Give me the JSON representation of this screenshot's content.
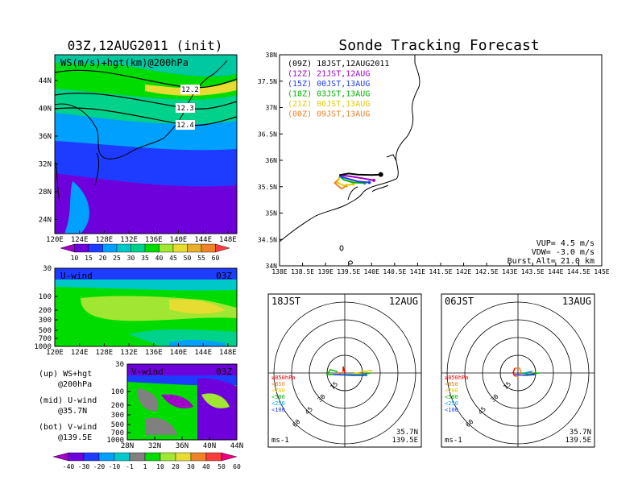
{
  "left_title": "03Z,12AUG2011 (init)",
  "right_title": "Sonde Tracking Forecast",
  "map_panel": {
    "label": "WS(m/s)+hgt(km)@200hPa",
    "lat_ticks": [
      "44N",
      "40N",
      "36N",
      "32N",
      "28N",
      "24N"
    ],
    "lon_ticks": [
      "120E",
      "124E",
      "128E",
      "132E",
      "136E",
      "140E",
      "144E",
      "148E"
    ],
    "contour_labels": [
      "12.2",
      "12.3",
      "12.4"
    ],
    "colorbar_labels": [
      "10",
      "15",
      "20",
      "25",
      "30",
      "35",
      "40",
      "45",
      "50",
      "55",
      "60"
    ],
    "colorbar_colors": [
      "#a000c8",
      "#6e00dc",
      "#1e3cff",
      "#00a0ff",
      "#00c8c8",
      "#00d28c",
      "#00dc00",
      "#a0e632",
      "#e6dc32",
      "#e6af2d",
      "#f08228",
      "#fa3c3c"
    ]
  },
  "u_panel": {
    "label": "U-wind",
    "time": "03Z",
    "y_ticks": [
      "30",
      "100",
      "200",
      "300",
      "500",
      "700",
      "1000"
    ],
    "x_ticks": [
      "120E",
      "124E",
      "128E",
      "132E",
      "136E",
      "140E",
      "144E",
      "148E"
    ]
  },
  "v_panel": {
    "label": "V-wind",
    "time": "03Z",
    "y_ticks": [
      "30",
      "100",
      "200",
      "300",
      "500",
      "700",
      "1000"
    ],
    "x_ticks": [
      "28N",
      "32N",
      "36N",
      "40N",
      "44N"
    ]
  },
  "legend_notes": {
    "up": "(up) WS+hgt",
    "up2": "@200hPa",
    "mid": "(mid) U-wind",
    "mid2": "@35.7N",
    "bot": "(bot) V-wind",
    "bot2": "@139.5E"
  },
  "bottom_colorbar": {
    "labels": [
      "-40",
      "-30",
      "-20",
      "-10",
      "-1",
      "1",
      "10",
      "20",
      "30",
      "40",
      "50",
      "60"
    ],
    "colors": [
      "#a000c8",
      "#6e00dc",
      "#1e3cff",
      "#00a0ff",
      "#00c8c8",
      "#808080",
      "#00dc00",
      "#a0e632",
      "#e6dc32",
      "#f08228",
      "#fa3c3c",
      "#f00082"
    ]
  },
  "track_panel": {
    "lat_ticks": [
      "38N",
      "37.5N",
      "37N",
      "36.5N",
      "36N",
      "35.5N",
      "35N",
      "34.5N",
      "34N"
    ],
    "lon_ticks": [
      "138E",
      "138.5E",
      "139E",
      "139.5E",
      "140E",
      "140.5E",
      "141E",
      "141.5E",
      "142E",
      "142.5E",
      "143E",
      "143.5E",
      "144E",
      "144.5E",
      "145E"
    ],
    "legend": [
      {
        "label": "(09Z) 18JST,12AUG2011",
        "color": "#000000"
      },
      {
        "label": "(12Z) 21JST,12AUG",
        "color": "#a000c8"
      },
      {
        "label": "(15Z) 00JST,13AUG",
        "color": "#1e3cff"
      },
      {
        "label": "(18Z) 03JST,13AUG",
        "color": "#00b400"
      },
      {
        "label": "(21Z) 06JST,13AUG",
        "color": "#e6c800"
      },
      {
        "label": "(00Z) 09JST,13AUG",
        "color": "#f08228"
      }
    ],
    "vup": "VUP= 4.5 m/s",
    "vdw": "VDW= -3.0 m/s",
    "burst": "Burst Alt= 21.0 km"
  },
  "hodograph_left": {
    "time": "18JST",
    "date": "12AUG",
    "unit": "ms-1",
    "lat": "35.7N",
    "lon": "139.5E",
    "ring_labels": [
      "15",
      "30",
      "45",
      "60"
    ]
  },
  "hodograph_right": {
    "time": "06JST",
    "date": "13AUG",
    "unit": "ms-1",
    "lat": "35.7N",
    "lon": "139.5E",
    "ring_labels": [
      "15",
      "30",
      "45",
      "60"
    ]
  },
  "hodo_legend": [
    {
      "label": "≥850hPa",
      "color": "#fa0000"
    },
    {
      "label": "<850",
      "color": "#f08228"
    },
    {
      "label": "<700",
      "color": "#e6c800"
    },
    {
      "label": "<500",
      "color": "#00b400"
    },
    {
      "label": "<250",
      "color": "#00a0ff"
    },
    {
      "label": "<100",
      "color": "#1e3cff"
    }
  ],
  "chart_data": {
    "type": "line",
    "title": "Sonde Tracking Forecast",
    "xlabel": "",
    "ylabel": "",
    "xlim": [
      138,
      145
    ],
    "ylim": [
      34,
      38
    ],
    "series": [
      {
        "name": "(09Z) 18JST,12AUG2011",
        "x": [
          139.3,
          139.5,
          139.7,
          140.0,
          140.2
        ],
        "y": [
          35.72,
          35.75,
          35.73,
          35.72,
          35.73
        ]
      },
      {
        "name": "(12Z) 21JST,12AUG",
        "x": [
          139.3,
          139.5,
          139.8,
          140.05
        ],
        "y": [
          35.72,
          35.7,
          35.66,
          35.62
        ]
      },
      {
        "name": "(15Z) 00JST,13AUG",
        "x": [
          139.3,
          139.45,
          139.7,
          139.95
        ],
        "y": [
          35.7,
          35.66,
          35.6,
          35.58
        ]
      },
      {
        "name": "(18Z) 03JST,13AUG",
        "x": [
          139.3,
          139.4,
          139.6,
          139.85
        ],
        "y": [
          35.7,
          35.63,
          35.58,
          35.57
        ]
      },
      {
        "name": "(21Z) 06JST,13AUG",
        "x": [
          139.3,
          139.25,
          139.4,
          139.6
        ],
        "y": [
          35.68,
          35.58,
          35.52,
          35.55
        ]
      },
      {
        "name": "(00Z) 09JST,13AUG",
        "x": [
          139.3,
          139.2,
          139.35,
          139.45
        ],
        "y": [
          35.66,
          35.57,
          35.46,
          35.52
        ]
      }
    ]
  }
}
